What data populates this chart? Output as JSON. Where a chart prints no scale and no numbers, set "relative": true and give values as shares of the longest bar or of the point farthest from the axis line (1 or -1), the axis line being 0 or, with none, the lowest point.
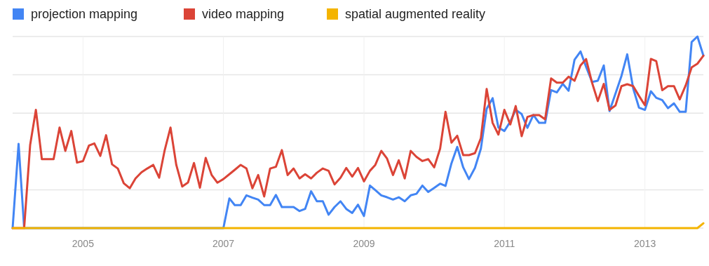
{
  "chart_data": {
    "type": "line",
    "relative": true,
    "grid": true,
    "legend": "top left",
    "marker": "none",
    "line_style": "solid",
    "x": [
      "2004-01",
      "2004-02",
      "2004-03",
      "2004-04",
      "2004-05",
      "2004-06",
      "2004-07",
      "2004-08",
      "2004-09",
      "2004-10",
      "2004-11",
      "2004-12",
      "2005-01",
      "2005-02",
      "2005-03",
      "2005-04",
      "2005-05",
      "2005-06",
      "2005-07",
      "2005-08",
      "2005-09",
      "2005-10",
      "2005-11",
      "2005-12",
      "2006-01",
      "2006-02",
      "2006-03",
      "2006-04",
      "2006-05",
      "2006-06",
      "2006-07",
      "2006-08",
      "2006-09",
      "2006-10",
      "2006-11",
      "2006-12",
      "2007-01",
      "2007-02",
      "2007-03",
      "2007-04",
      "2007-05",
      "2007-06",
      "2007-07",
      "2007-08",
      "2007-09",
      "2007-10",
      "2007-11",
      "2007-12",
      "2008-01",
      "2008-02",
      "2008-03",
      "2008-04",
      "2008-05",
      "2008-06",
      "2008-07",
      "2008-08",
      "2008-09",
      "2008-10",
      "2008-11",
      "2008-12",
      "2009-01",
      "2009-02",
      "2009-03",
      "2009-04",
      "2009-05",
      "2009-06",
      "2009-07",
      "2009-08",
      "2009-09",
      "2009-10",
      "2009-11",
      "2009-12",
      "2010-01",
      "2010-02",
      "2010-03",
      "2010-04",
      "2010-05",
      "2010-06",
      "2010-07",
      "2010-08",
      "2010-09",
      "2010-10",
      "2010-11",
      "2010-12",
      "2011-01",
      "2011-02",
      "2011-03",
      "2011-04",
      "2011-05",
      "2011-06",
      "2011-07",
      "2011-08",
      "2011-09",
      "2011-10",
      "2011-11",
      "2011-12",
      "2012-01",
      "2012-02",
      "2012-03",
      "2012-04",
      "2012-05",
      "2012-06",
      "2012-07",
      "2012-08",
      "2012-09",
      "2012-10",
      "2012-11",
      "2012-12",
      "2013-01",
      "2013-02",
      "2013-03",
      "2013-04",
      "2013-05",
      "2013-06",
      "2013-07",
      "2013-08",
      "2013-09",
      "2013-10",
      "2013-11"
    ],
    "xlim": [
      "2004-01",
      "2013-11"
    ],
    "xticks": [
      "2005",
      "2007",
      "2009",
      "2011",
      "2013"
    ],
    "series": [
      {
        "name": "projection mapping",
        "color": "#4285f4",
        "values": [
          0,
          0.44,
          0,
          0,
          0,
          0,
          0,
          0,
          0,
          0,
          0,
          0,
          0,
          0,
          0,
          0,
          0,
          0,
          0,
          0,
          0,
          0,
          0,
          0,
          0,
          0,
          0,
          0,
          0,
          0,
          0,
          0,
          0,
          0,
          0,
          0,
          0,
          0.155,
          0.12,
          0.12,
          0.171,
          0.159,
          0.149,
          0.12,
          0.12,
          0.173,
          0.11,
          0.11,
          0.11,
          0.089,
          0.1,
          0.192,
          0.14,
          0.14,
          0.07,
          0.11,
          0.14,
          0.1,
          0.079,
          0.122,
          0.063,
          0.222,
          0.198,
          0.171,
          0.161,
          0.149,
          0.161,
          0.14,
          0.171,
          0.179,
          0.222,
          0.189,
          0.21,
          0.232,
          0.22,
          0.338,
          0.424,
          0.317,
          0.256,
          0.314,
          0.415,
          0.623,
          0.678,
          0.525,
          0.507,
          0.556,
          0.617,
          0.595,
          0.523,
          0.59,
          0.549,
          0.549,
          0.72,
          0.708,
          0.753,
          0.717,
          0.879,
          0.922,
          0.842,
          0.763,
          0.769,
          0.849,
          0.611,
          0.702,
          0.794,
          0.907,
          0.729,
          0.629,
          0.617,
          0.714,
          0.68,
          0.668,
          0.626,
          0.651,
          0.607,
          0.607,
          0.971,
          1,
          0.9
        ]
      },
      {
        "name": "video mapping",
        "color": "#db4437",
        "values": [
          0,
          0,
          0,
          0.433,
          0.617,
          0.36,
          0.36,
          0.36,
          0.525,
          0.403,
          0.507,
          0.342,
          0.35,
          0.431,
          0.442,
          0.377,
          0.485,
          0.333,
          0.311,
          0.234,
          0.208,
          0.259,
          0.291,
          0.311,
          0.33,
          0.263,
          0.403,
          0.525,
          0.33,
          0.217,
          0.238,
          0.34,
          0.211,
          0.366,
          0.277,
          0.237,
          0.256,
          0.281,
          0.304,
          0.33,
          0.311,
          0.208,
          0.277,
          0.165,
          0.311,
          0.32,
          0.407,
          0.277,
          0.311,
          0.259,
          0.281,
          0.259,
          0.289,
          0.311,
          0.299,
          0.228,
          0.263,
          0.314,
          0.269,
          0.314,
          0.244,
          0.299,
          0.33,
          0.403,
          0.363,
          0.277,
          0.354,
          0.259,
          0.403,
          0.372,
          0.35,
          0.36,
          0.317,
          0.415,
          0.607,
          0.446,
          0.482,
          0.381,
          0.381,
          0.391,
          0.47,
          0.726,
          0.549,
          0.488,
          0.617,
          0.541,
          0.637,
          0.48,
          0.58,
          0.59,
          0.59,
          0.568,
          0.781,
          0.759,
          0.759,
          0.79,
          0.769,
          0.849,
          0.882,
          0.759,
          0.663,
          0.753,
          0.617,
          0.64,
          0.741,
          0.751,
          0.741,
          0.69,
          0.641,
          0.883,
          0.871,
          0.72,
          0.741,
          0.741,
          0.672,
          0.745,
          0.839,
          0.858,
          0.9
        ]
      },
      {
        "name": "spatial augmented reality",
        "color": "#f4b400",
        "values": [
          0,
          0,
          0,
          0,
          0,
          0,
          0,
          0,
          0,
          0,
          0,
          0,
          0,
          0,
          0,
          0,
          0,
          0,
          0,
          0,
          0,
          0,
          0,
          0,
          0,
          0,
          0,
          0,
          0,
          0,
          0,
          0,
          0,
          0,
          0,
          0,
          0,
          0,
          0,
          0,
          0,
          0,
          0,
          0,
          0,
          0,
          0,
          0,
          0,
          0,
          0,
          0,
          0,
          0,
          0,
          0,
          0,
          0,
          0,
          0,
          0,
          0,
          0,
          0,
          0,
          0,
          0,
          0,
          0,
          0,
          0,
          0,
          0,
          0,
          0,
          0,
          0,
          0,
          0,
          0,
          0,
          0,
          0,
          0,
          0,
          0,
          0,
          0,
          0,
          0,
          0,
          0,
          0,
          0,
          0,
          0,
          0,
          0,
          0,
          0,
          0,
          0,
          0,
          0,
          0,
          0,
          0,
          0,
          0,
          0,
          0,
          0,
          0,
          0,
          0,
          0,
          0,
          0,
          0.025
        ]
      }
    ]
  }
}
